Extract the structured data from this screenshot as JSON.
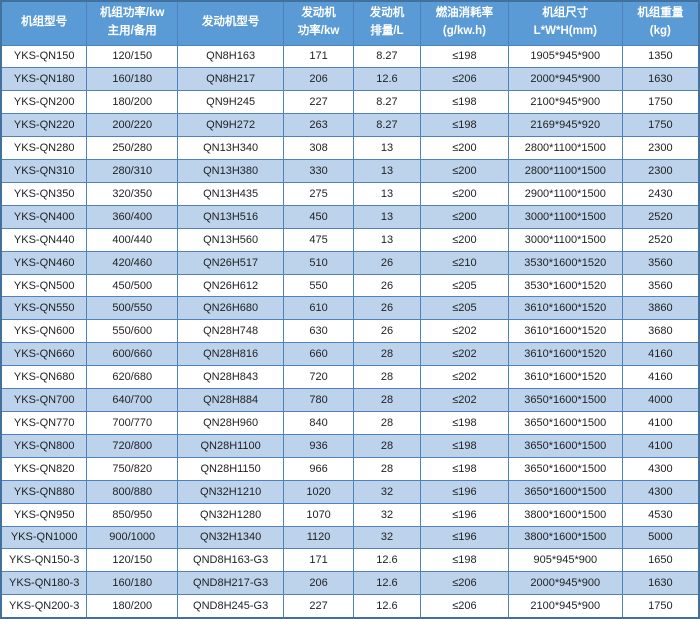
{
  "style": {
    "header_bg": "#5b9bd5",
    "header_text": "#ffffff",
    "row_bg": "#ffffff",
    "row_alt_bg": "#bdd3ec",
    "border": "#4f81bd",
    "outer_border": "#41719c",
    "body_text": "#1f1f1f"
  },
  "chart_data": {
    "type": "table",
    "title": "",
    "columns": [
      {
        "id": "unit-model",
        "line1": "机组型号",
        "line2": ""
      },
      {
        "id": "unit-power",
        "line1": "机组功率/kw",
        "line2": "主用/备用"
      },
      {
        "id": "engine-model",
        "line1": "发动机型号",
        "line2": ""
      },
      {
        "id": "engine-power",
        "line1": "发动机",
        "line2": "功率/kw"
      },
      {
        "id": "engine-displacement",
        "line1": "发动机",
        "line2": "排量/L"
      },
      {
        "id": "fuel-consumption",
        "line1": "燃油消耗率",
        "line2": "(g/kw.h)"
      },
      {
        "id": "unit-dimensions",
        "line1": "机组尺寸",
        "line2": "L*W*H(mm)"
      },
      {
        "id": "unit-weight",
        "line1": "机组重量",
        "line2": "(kg)"
      }
    ],
    "rows": [
      [
        "YKS-QN150",
        "120/150",
        "QN8H163",
        "171",
        "8.27",
        "≤198",
        "1905*945*900",
        "1350"
      ],
      [
        "YKS-QN180",
        "160/180",
        "QN8H217",
        "206",
        "12.6",
        "≤206",
        "2000*945*900",
        "1630"
      ],
      [
        "YKS-QN200",
        "180/200",
        "QN9H245",
        "227",
        "8.27",
        "≤198",
        "2100*945*900",
        "1750"
      ],
      [
        "YKS-QN220",
        "200/220",
        "QN9H272",
        "263",
        "8.27",
        "≤198",
        "2169*945*920",
        "1750"
      ],
      [
        "YKS-QN280",
        "250/280",
        "QN13H340",
        "308",
        "13",
        "≤200",
        "2800*1100*1500",
        "2300"
      ],
      [
        "YKS-QN310",
        "280/310",
        "QN13H380",
        "330",
        "13",
        "≤200",
        "2800*1100*1500",
        "2300"
      ],
      [
        "YKS-QN350",
        "320/350",
        "QN13H435",
        "275",
        "13",
        "≤200",
        "2900*1100*1500",
        "2430"
      ],
      [
        "YKS-QN400",
        "360/400",
        "QN13H516",
        "450",
        "13",
        "≤200",
        "3000*1100*1500",
        "2520"
      ],
      [
        "YKS-QN440",
        "400/440",
        "QN13H560",
        "475",
        "13",
        "≤200",
        "3000*1100*1500",
        "2520"
      ],
      [
        "YKS-QN460",
        "420/460",
        "QN26H517",
        "510",
        "26",
        "≤210",
        "3530*1600*1520",
        "3560"
      ],
      [
        "YKS-QN500",
        "450/500",
        "QN26H612",
        "550",
        "26",
        "≤205",
        "3530*1600*1520",
        "3560"
      ],
      [
        "YKS-QN550",
        "500/550",
        "QN26H680",
        "610",
        "26",
        "≤205",
        "3610*1600*1520",
        "3860"
      ],
      [
        "YKS-QN600",
        "550/600",
        "QN28H748",
        "630",
        "26",
        "≤202",
        "3610*1600*1520",
        "3680"
      ],
      [
        "YKS-QN660",
        "600/660",
        "QN28H816",
        "660",
        "28",
        "≤202",
        "3610*1600*1520",
        "4160"
      ],
      [
        "YKS-QN680",
        "620/680",
        "QN28H843",
        "720",
        "28",
        "≤202",
        "3610*1600*1520",
        "4160"
      ],
      [
        "YKS-QN700",
        "640/700",
        "QN28H884",
        "780",
        "28",
        "≤202",
        "3650*1600*1500",
        "4000"
      ],
      [
        "YKS-QN770",
        "700/770",
        "QN28H960",
        "840",
        "28",
        "≤198",
        "3650*1600*1500",
        "4100"
      ],
      [
        "YKS-QN800",
        "720/800",
        "QN28H1100",
        "936",
        "28",
        "≤198",
        "3650*1600*1500",
        "4100"
      ],
      [
        "YKS-QN820",
        "750/820",
        "QN28H1150",
        "966",
        "28",
        "≤198",
        "3650*1600*1500",
        "4300"
      ],
      [
        "YKS-QN880",
        "800/880",
        "QN32H1210",
        "1020",
        "32",
        "≤196",
        "3650*1600*1500",
        "4300"
      ],
      [
        "YKS-QN950",
        "850/950",
        "QN32H1280",
        "1070",
        "32",
        "≤196",
        "3800*1600*1500",
        "4530"
      ],
      [
        "YKS-QN1000",
        "900/1000",
        "QN32H1340",
        "1120",
        "32",
        "≤196",
        "3800*1600*1500",
        "5000"
      ],
      [
        "YKS-QN150-3",
        "120/150",
        "QND8H163-G3",
        "171",
        "12.6",
        "≤198",
        "905*945*900",
        "1650"
      ],
      [
        "YKS-QN180-3",
        "160/180",
        "QND8H217-G3",
        "206",
        "12.6",
        "≤206",
        "2000*945*900",
        "1630"
      ],
      [
        "YKS-QN200-3",
        "180/200",
        "QND8H245-G3",
        "227",
        "12.6",
        "≤206",
        "2100*945*900",
        "1750"
      ]
    ]
  }
}
